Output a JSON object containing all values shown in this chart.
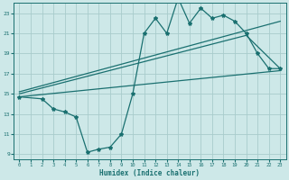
{
  "xlabel": "Humidex (Indice chaleur)",
  "bg_color": "#cde8e8",
  "grid_color": "#a8cccc",
  "line_color": "#1a7070",
  "xlim": [
    -0.5,
    23.5
  ],
  "ylim": [
    8.5,
    24.0
  ],
  "xticks": [
    0,
    1,
    2,
    3,
    4,
    5,
    6,
    7,
    8,
    9,
    10,
    11,
    12,
    13,
    14,
    15,
    16,
    17,
    18,
    19,
    20,
    21,
    22,
    23
  ],
  "yticks": [
    9,
    11,
    13,
    15,
    17,
    19,
    21,
    23
  ],
  "line1_x": [
    0,
    2,
    3,
    4,
    5,
    6,
    7,
    8,
    9,
    10,
    11,
    12,
    13,
    14,
    15,
    16,
    17,
    18,
    19,
    20,
    21,
    22,
    23
  ],
  "line1_y": [
    14.7,
    14.5,
    13.5,
    13.2,
    12.7,
    9.2,
    9.5,
    9.7,
    11.0,
    15.0,
    21.0,
    22.5,
    21.0,
    24.5,
    22.0,
    23.5,
    22.5,
    22.8,
    22.2,
    21.0,
    19.0,
    17.5,
    17.5
  ],
  "line2_x": [
    0,
    23
  ],
  "line2_y": [
    15.2,
    22.2
  ],
  "line3_x": [
    0,
    23
  ],
  "line3_y": [
    14.7,
    17.3
  ],
  "line4_x": [
    0,
    20,
    23
  ],
  "line4_y": [
    15.0,
    20.8,
    17.5
  ]
}
